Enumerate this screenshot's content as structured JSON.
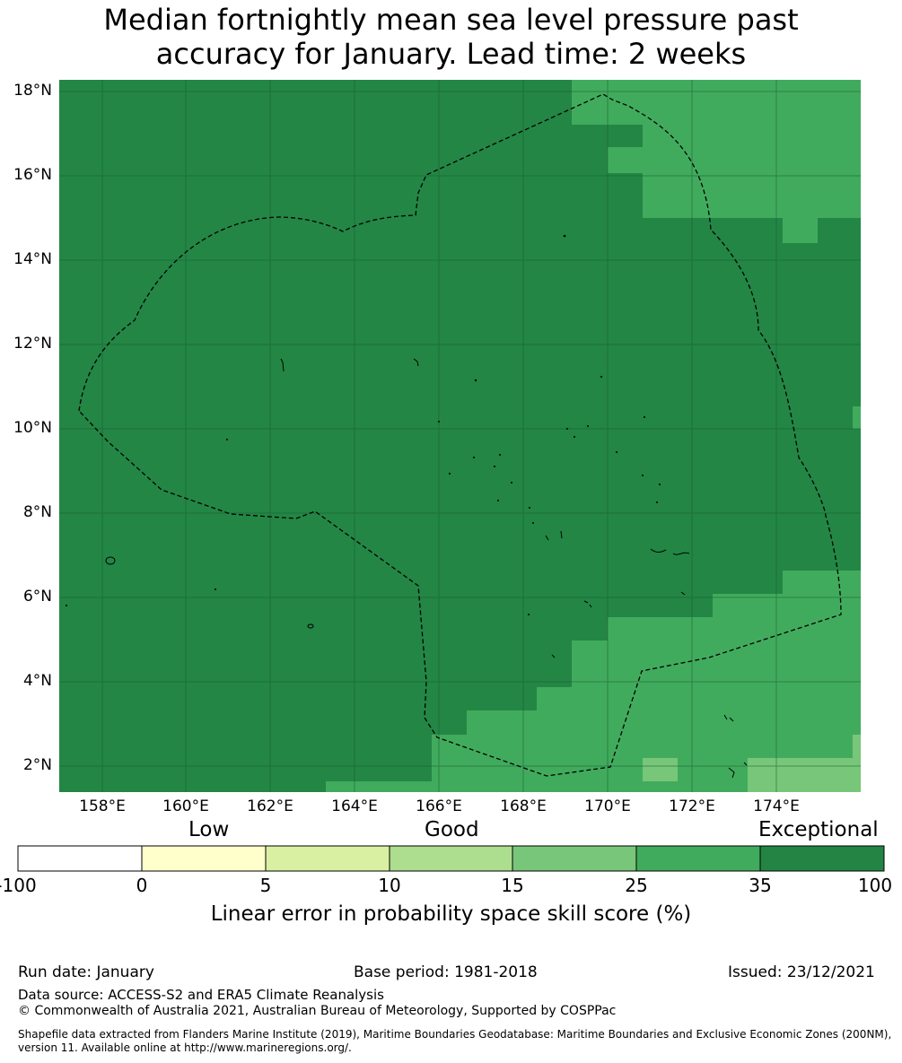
{
  "title": {
    "line1": "Median fortnightly mean sea level pressure past",
    "line2": "accuracy for January. Lead time: 2 weeks"
  },
  "map": {
    "lat_labels": [
      "18°N",
      "16°N",
      "14°N",
      "12°N",
      "10°N",
      "8°N",
      "6°N",
      "4°N",
      "2°N"
    ],
    "lon_labels": [
      "158°E",
      "160°E",
      "162°E",
      "164°E",
      "166°E",
      "168°E",
      "170°E",
      "172°E",
      "174°E"
    ],
    "colors": {
      "exceptional_dark": "#238645",
      "green_35": "#41ab5d",
      "green_25": "#78c679",
      "eez_boundary": "#000000"
    }
  },
  "colorbar": {
    "categories": [
      "Low",
      "Good",
      "Exceptional"
    ],
    "ticks": [
      "-100",
      "0",
      "5",
      "10",
      "15",
      "25",
      "35",
      "100"
    ],
    "colors": [
      "#ffffff",
      "#ffffcc",
      "#d9f0a3",
      "#addd8e",
      "#78c679",
      "#41ab5d",
      "#238443"
    ],
    "label": "Linear error in probability space skill score (%)"
  },
  "footer": {
    "run_date": "Run date: January",
    "base_period": "Base period: 1981-2018",
    "issued": "Issued: 23/12/2021",
    "data_source": "Data source: ACCESS-S2 and ERA5 Climate Reanalysis",
    "copyright": "© Commonwealth of Australia 2021, Australian Bureau of Meteorology, Supported by COSPPac",
    "shapefile": "Shapefile data extracted from Flanders Marine Institute (2019), Maritime Boundaries Geodatabase: Maritime Boundaries and Exclusive Economic Zones (200NM), version 11. Available online at http://www.marineregions.org/."
  }
}
